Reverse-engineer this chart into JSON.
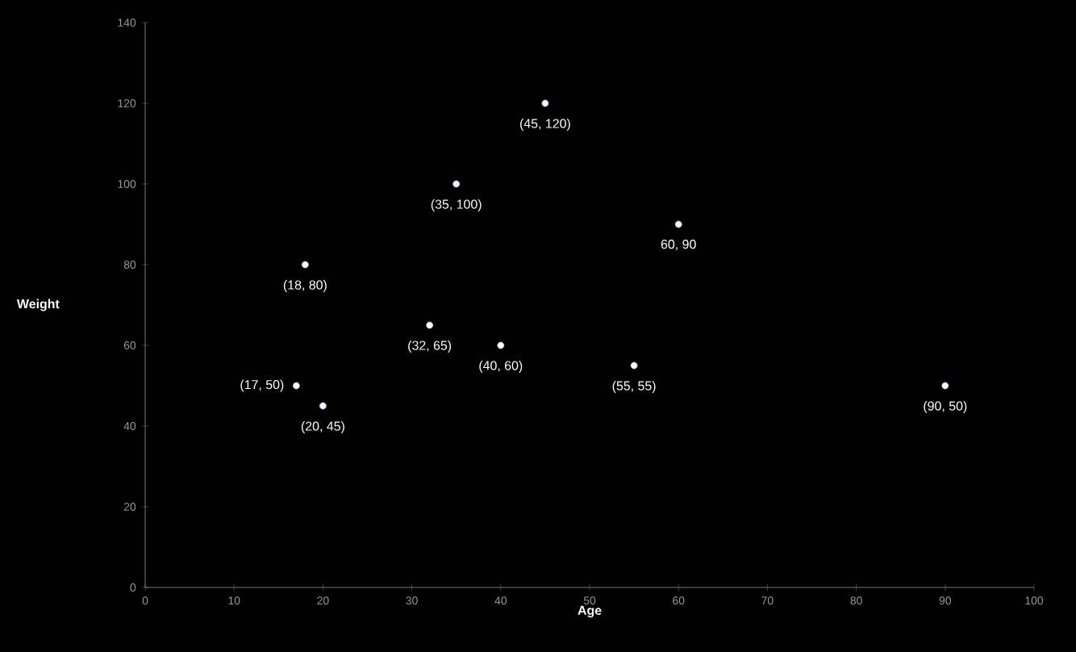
{
  "chart_data": {
    "type": "scatter",
    "xlabel": "Age",
    "ylabel": "Weight",
    "x": [
      17,
      20,
      18,
      32,
      35,
      40,
      45,
      55,
      60,
      90
    ],
    "values": [
      50,
      45,
      80,
      65,
      100,
      60,
      120,
      55,
      90,
      50
    ],
    "color": "#ffffff",
    "marker": "circle",
    "grid": false,
    "xlim": [
      0,
      100
    ],
    "xticks": [
      0,
      10,
      20,
      30,
      40,
      50,
      60,
      70,
      80,
      90,
      100
    ],
    "ylim": [
      0,
      140
    ],
    "yticks": [
      0,
      20,
      40,
      60,
      80,
      100,
      120,
      140
    ],
    "annotations": [
      {
        "text": "(17, 50)",
        "x": 17,
        "y": 50
      },
      {
        "text": "(20, 45)",
        "x": 20,
        "y": 45
      },
      {
        "text": "(18, 80)",
        "x": 18,
        "y": 80
      },
      {
        "text": "(32, 65)",
        "x": 32,
        "y": 65
      },
      {
        "text": "(35, 100)",
        "x": 35,
        "y": 100
      },
      {
        "text": "(40, 60)",
        "x": 40,
        "y": 60
      },
      {
        "text": "(45, 120)",
        "x": 45,
        "y": 120
      },
      {
        "text": "(55, 55)",
        "x": 55,
        "y": 55
      },
      {
        "text": "60, 90",
        "x": 60,
        "y": 90
      },
      {
        "text": "(90, 50)",
        "x": 90,
        "y": 50
      }
    ]
  }
}
